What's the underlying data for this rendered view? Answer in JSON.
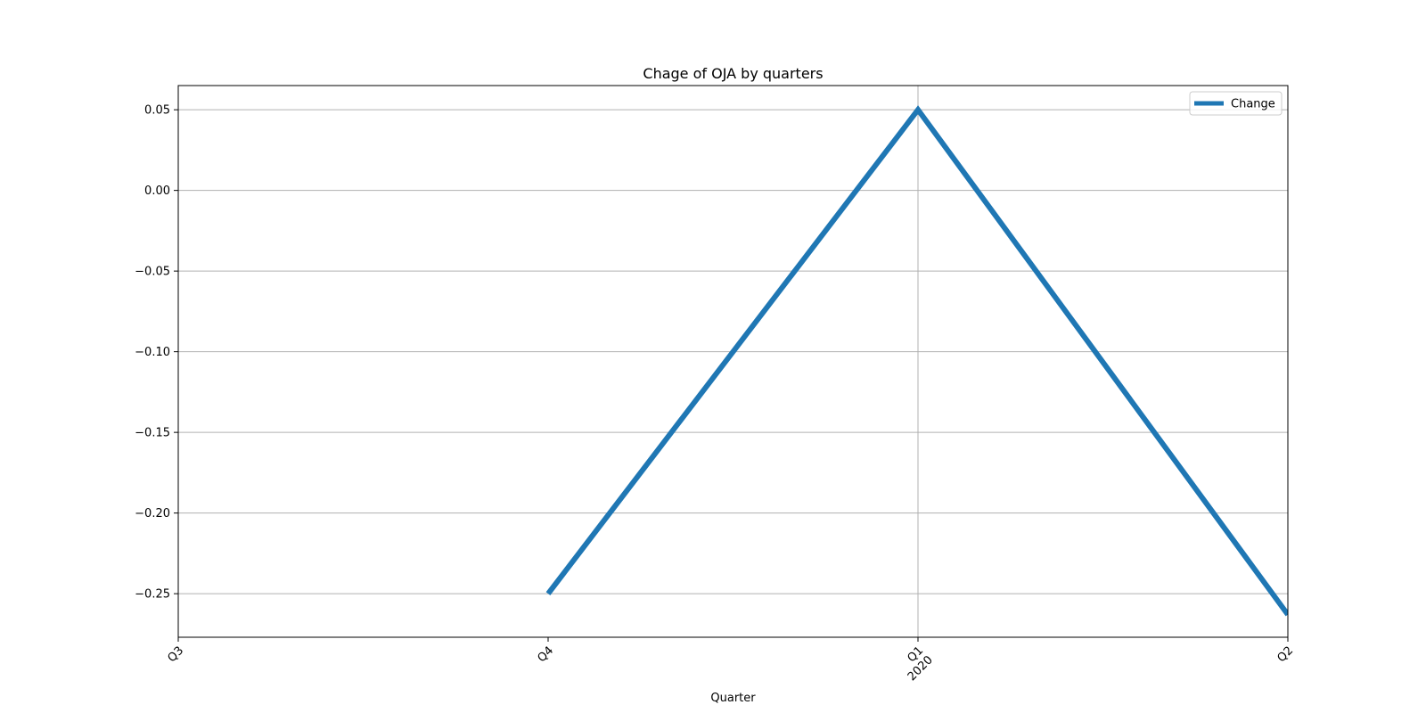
{
  "chart_data": {
    "type": "line",
    "title": "Chage of OJA by quarters",
    "xlabel": "Quarter",
    "ylabel": "",
    "x_ticks": [
      {
        "label": "Q3",
        "sublabel": ""
      },
      {
        "label": "Q4",
        "sublabel": ""
      },
      {
        "label": "Q1",
        "sublabel": "2020"
      },
      {
        "label": "Q2",
        "sublabel": ""
      }
    ],
    "y_ticks": [
      "0.05",
      "0.00",
      "−0.05",
      "−0.10",
      "−0.15",
      "−0.20",
      "−0.25"
    ],
    "y_tick_values": [
      0.05,
      0.0,
      -0.05,
      -0.1,
      -0.15,
      -0.2,
      -0.25
    ],
    "ylim": [
      -0.277,
      0.065
    ],
    "xlim": [
      0,
      3
    ],
    "grid": true,
    "legend_position": "top-right",
    "series": [
      {
        "name": "Change",
        "color": "#1f77b4",
        "points": [
          {
            "x": 1,
            "y": -0.25
          },
          {
            "x": 2,
            "y": 0.05
          },
          {
            "x": 3,
            "y": -0.263
          }
        ]
      }
    ]
  }
}
